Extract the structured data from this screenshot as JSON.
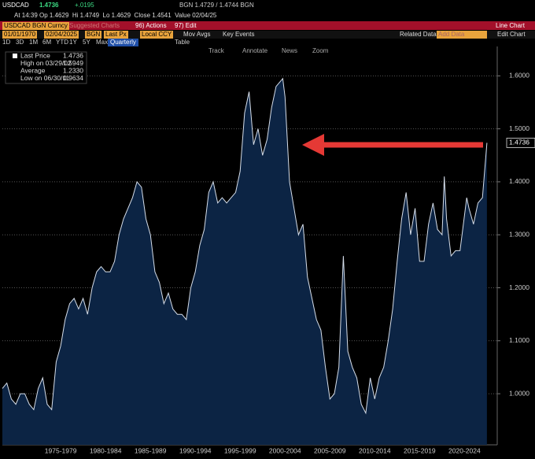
{
  "quote_bar": {
    "ticker": "USDCAD",
    "last": "1.4736",
    "change": "+.0195",
    "bid_ask": "BGN 1.4729 / 1.4744 BGN"
  },
  "quote_line": "At 14:39 Op 1.4629  Hi 1.4749  Lo 1.4629  Close 1.4541  Value 02/04/25",
  "menu": {
    "security": "USDCAD BGN Curncy",
    "suggested": "Suggested Charts",
    "actions": "96) Actions",
    "edit": "97) Edit",
    "view": "Line Chart"
  },
  "controls": {
    "start": "01/01/1970",
    "end": "02/04/2025",
    "source": "BGN",
    "field": "Last Px",
    "currency": "Local CCY",
    "mov_avgs": "Mov Avgs",
    "key_events": "Key Events",
    "related": "Related Data",
    "add": "Add Data",
    "edit_chart": "Edit Chart"
  },
  "periods": [
    "1D",
    "3D",
    "1M",
    "6M",
    "YTD",
    "1Y",
    "5Y",
    "Max"
  ],
  "frequency": "Quarterly",
  "table": "Table",
  "tools": [
    "Track",
    "Annotate",
    "News",
    "Zoom"
  ],
  "legend": [
    {
      "label": "Last Price",
      "value": "1.4736"
    },
    {
      "label": "High on 03/29/02",
      "value": "1.5949"
    },
    {
      "label": "Average",
      "value": "1.2330"
    },
    {
      "label": "Low on 06/30/11",
      "value": "0.9634"
    }
  ],
  "chart_data": {
    "type": "area",
    "color": "#0c2444",
    "line_color": "#d6deea",
    "grid": true,
    "x": [
      1971,
      1971.5,
      1972,
      1972.5,
      1973,
      1973.5,
      1974,
      1974.5,
      1975,
      1975.5,
      1976,
      1976.5,
      1977,
      1977.5,
      1978,
      1978.5,
      1979,
      1979.5,
      1980,
      1980.5,
      1981,
      1981.5,
      1982,
      1982.5,
      1983,
      1983.5,
      1984,
      1984.5,
      1985,
      1985.5,
      1986,
      1986.5,
      1987,
      1987.5,
      1988,
      1988.5,
      1989,
      1989.5,
      1990,
      1990.5,
      1991,
      1991.5,
      1992,
      1992.5,
      1993,
      1993.5,
      1994,
      1994.5,
      1995,
      1995.5,
      1996,
      1996.5,
      1997,
      1997.5,
      1998,
      1998.5,
      1999,
      1999.5,
      2000,
      2000.5,
      2001,
      2001.5,
      2002.25,
      2002.5,
      2003,
      2003.5,
      2004,
      2004.5,
      2005,
      2005.5,
      2006,
      2006.5,
      2007,
      2007.5,
      2008,
      2008.5,
      2009,
      2009.5,
      2010,
      2010.5,
      2011,
      2011.5,
      2012,
      2012.5,
      2013,
      2013.5,
      2014,
      2014.5,
      2015,
      2015.5,
      2016,
      2016.5,
      2017,
      2017.5,
      2018,
      2018.5,
      2019,
      2019.5,
      2020,
      2020.25,
      2020.5,
      2021,
      2021.5,
      2022,
      2022.75,
      2023,
      2023.5,
      2024,
      2024.5,
      2025
    ],
    "values": [
      1.01,
      1.02,
      0.99,
      0.98,
      1.0,
      1.0,
      0.98,
      0.97,
      1.01,
      1.03,
      0.98,
      0.97,
      1.06,
      1.09,
      1.14,
      1.17,
      1.18,
      1.16,
      1.18,
      1.15,
      1.2,
      1.23,
      1.24,
      1.23,
      1.23,
      1.25,
      1.3,
      1.33,
      1.35,
      1.37,
      1.4,
      1.39,
      1.33,
      1.3,
      1.23,
      1.21,
      1.17,
      1.19,
      1.16,
      1.15,
      1.15,
      1.14,
      1.2,
      1.23,
      1.28,
      1.31,
      1.38,
      1.4,
      1.36,
      1.37,
      1.36,
      1.37,
      1.38,
      1.42,
      1.53,
      1.57,
      1.47,
      1.5,
      1.45,
      1.48,
      1.54,
      1.58,
      1.5949,
      1.56,
      1.4,
      1.35,
      1.3,
      1.32,
      1.22,
      1.18,
      1.14,
      1.12,
      1.05,
      0.99,
      1.0,
      1.05,
      1.26,
      1.08,
      1.05,
      1.03,
      0.98,
      0.9634,
      1.03,
      0.99,
      1.03,
      1.05,
      1.1,
      1.16,
      1.25,
      1.33,
      1.38,
      1.3,
      1.35,
      1.25,
      1.25,
      1.32,
      1.36,
      1.31,
      1.3,
      1.41,
      1.33,
      1.26,
      1.27,
      1.27,
      1.37,
      1.35,
      1.32,
      1.36,
      1.37,
      1.4736
    ],
    "xlim": [
      1971,
      2025.8
    ],
    "ylim": [
      0.908,
      1.654
    ],
    "yticks": [
      {
        "value": 1.0,
        "label": "1.0000"
      },
      {
        "value": 1.1,
        "label": "1.1000"
      },
      {
        "value": 1.2,
        "label": "1.2000"
      },
      {
        "value": 1.3,
        "label": "1.3000"
      },
      {
        "value": 1.4,
        "label": "1.4000"
      },
      {
        "value": 1.5,
        "label": "1.5000"
      },
      {
        "value": 1.6,
        "label": "1.6000"
      }
    ],
    "xticks": [
      {
        "value": 1977.5,
        "label": "1975-1979"
      },
      {
        "value": 1982.5,
        "label": "1980-1984"
      },
      {
        "value": 1987.5,
        "label": "1985-1989"
      },
      {
        "value": 1992.5,
        "label": "1990-1994"
      },
      {
        "value": 1997.5,
        "label": "1995-1999"
      },
      {
        "value": 2002.5,
        "label": "2000-2004"
      },
      {
        "value": 2007.5,
        "label": "2005-2009"
      },
      {
        "value": 2012.5,
        "label": "2010-2014"
      },
      {
        "value": 2017.5,
        "label": "2015-2019"
      },
      {
        "value": 2022.5,
        "label": "2020-2024"
      }
    ]
  }
}
